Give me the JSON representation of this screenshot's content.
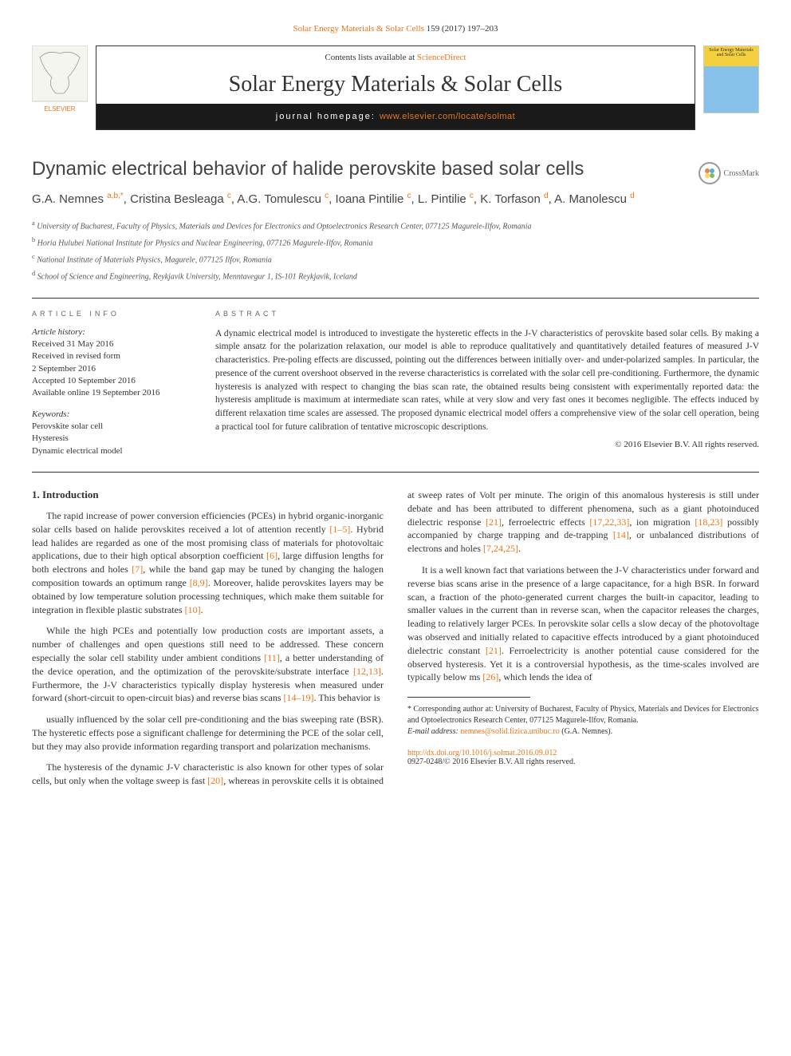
{
  "top_link": {
    "journal": "Solar Energy Materials & Solar Cells",
    "pages": "159 (2017) 197–203"
  },
  "header": {
    "contents_prefix": "Contents lists available at ",
    "contents_link": "ScienceDirect",
    "journal_name": "Solar Energy Materials & Solar Cells",
    "homepage_prefix": "journal homepage: ",
    "homepage_url": "www.elsevier.com/locate/solmat",
    "publisher": "ELSEVIER",
    "cover_text": "Solar Energy Materials and Solar Cells"
  },
  "crossmark_label": "CrossMark",
  "title": "Dynamic electrical behavior of halide perovskite based solar cells",
  "authors_html": "G.A. Nemnes <sup>a,b,*</sup>, Cristina Besleaga <sup>c</sup>, A.G. Tomulescu <sup>c</sup>, Ioana Pintilie <sup>c</sup>, L. Pintilie <sup>c</sup>, K. Torfason <sup>d</sup>, A. Manolescu <sup>d</sup>",
  "affiliations": [
    {
      "marker": "a",
      "text": "University of Bucharest, Faculty of Physics, Materials and Devices for Electronics and Optoelectronics Research Center, 077125 Magurele-Ilfov, Romania"
    },
    {
      "marker": "b",
      "text": "Horia Hulubei National Institute for Physics and Nuclear Engineering, 077126 Magurele-Ilfov, Romania"
    },
    {
      "marker": "c",
      "text": "National Institute of Materials Physics, Magurele, 077125 Ilfov, Romania"
    },
    {
      "marker": "d",
      "text": "School of Science and Engineering, Reykjavik University, Menntavegur 1, IS-101 Reykjavik, Iceland"
    }
  ],
  "info": {
    "header": "ARTICLE INFO",
    "history_label": "Article history:",
    "history": [
      "Received 31 May 2016",
      "Received in revised form",
      "2 September 2016",
      "Accepted 10 September 2016",
      "Available online 19 September 2016"
    ],
    "keywords_label": "Keywords:",
    "keywords": [
      "Perovskite solar cell",
      "Hysteresis",
      "Dynamic electrical model"
    ]
  },
  "abstract": {
    "header": "ABSTRACT",
    "text": "A dynamic electrical model is introduced to investigate the hysteretic effects in the J-V characteristics of perovskite based solar cells. By making a simple ansatz for the polarization relaxation, our model is able to reproduce qualitatively and quantitatively detailed features of measured J-V characteristics. Pre-poling effects are discussed, pointing out the differences between initially over- and under-polarized samples. In particular, the presence of the current overshoot observed in the reverse characteristics is correlated with the solar cell pre-conditioning. Furthermore, the dynamic hysteresis is analyzed with respect to changing the bias scan rate, the obtained results being consistent with experimentally reported data: the hysteresis amplitude is maximum at intermediate scan rates, while at very slow and very fast ones it becomes negligible. The effects induced by different relaxation time scales are assessed. The proposed dynamic electrical model offers a comprehensive view of the solar cell operation, being a practical tool for future calibration of tentative microscopic descriptions.",
    "copyright": "© 2016 Elsevier B.V. All rights reserved."
  },
  "section1_heading": "1. Introduction",
  "paragraphs": [
    "The rapid increase of power conversion efficiencies (PCEs) in hybrid organic-inorganic solar cells based on halide perovskites received a lot of attention recently <a class='ref-link'>[1–5]</a>. Hybrid lead halides are regarded as one of the most promising class of materials for photovoltaic applications, due to their high optical absorption coefficient <a class='ref-link'>[6]</a>, large diffusion lengths for both electrons and holes <a class='ref-link'>[7]</a>, while the band gap may be tuned by changing the halogen composition towards an optimum range <a class='ref-link'>[8,9]</a>. Moreover, halide perovskites layers may be obtained by low temperature solution processing techniques, which make them suitable for integration in flexible plastic substrates <a class='ref-link'>[10]</a>.",
    "While the high PCEs and potentially low production costs are important assets, a number of challenges and open questions still need to be addressed. These concern especially the solar cell stability under ambient conditions <a class='ref-link'>[11]</a>, a better understanding of the device operation, and the optimization of the perovskite/substrate interface <a class='ref-link'>[12,13]</a>. Furthermore, the J-V characteristics typically display hysteresis when measured under forward (short-circuit to open-circuit bias) and reverse bias scans <a class='ref-link'>[14–19]</a>. This behavior is",
    "usually influenced by the solar cell pre-conditioning and the bias sweeping rate (BSR). The hysteretic effects pose a significant challenge for determining the PCE of the solar cell, but they may also provide information regarding transport and polarization mechanisms.",
    "The hysteresis of the dynamic J-V characteristic is also known for other types of solar cells, but only when the voltage sweep is fast <a class='ref-link'>[20]</a>, whereas in perovskite cells it is obtained at sweep rates of Volt per minute. The origin of this anomalous hysteresis is still under debate and has been attributed to different phenomena, such as a giant photoinduced dielectric response <a class='ref-link'>[21]</a>, ferroelectric effects <a class='ref-link'>[17,22,33]</a>, ion migration <a class='ref-link'>[18,23]</a> possibly accompanied by charge trapping and de-trapping <a class='ref-link'>[14]</a>, or unbalanced distributions of electrons and holes <a class='ref-link'>[7,24,25]</a>.",
    "It is a well known fact that variations between the J-V characteristics under forward and reverse bias scans arise in the presence of a large capacitance, for a high BSR. In forward scan, a fraction of the photo-generated current charges the built-in capacitor, leading to smaller values in the current than in reverse scan, when the capacitor releases the charges, leading to relatively larger PCEs. In perovskite solar cells a slow decay of the photovoltage was observed and initially related to capacitive effects introduced by a giant photoinduced dielectric constant <a class='ref-link'>[21]</a>. Ferroelectricity is another potential cause considered for the observed hysteresis. Yet it is a controversial hypothesis, as the time-scales involved are typically below ms <a class='ref-link'>[26]</a>, which lends the idea of"
  ],
  "footnote": {
    "corresponding": "* Corresponding author at: University of Bucharest, Faculty of Physics, Materials and Devices for Electronics and Optoelectronics Research Center, 077125 Magurele-Ilfov, Romania.",
    "email_label": "E-mail address: ",
    "email": "nemnes@solid.fizica.unibuc.ro",
    "email_author": " (G.A. Nemnes)."
  },
  "doi": {
    "url": "http://dx.doi.org/10.1016/j.solmat.2016.09.012",
    "issn": "0927-0248/© 2016 Elsevier B.V. All rights reserved."
  },
  "colors": {
    "accent": "#e8751a",
    "text": "#333333",
    "bar_bg": "#1a1a1a"
  }
}
